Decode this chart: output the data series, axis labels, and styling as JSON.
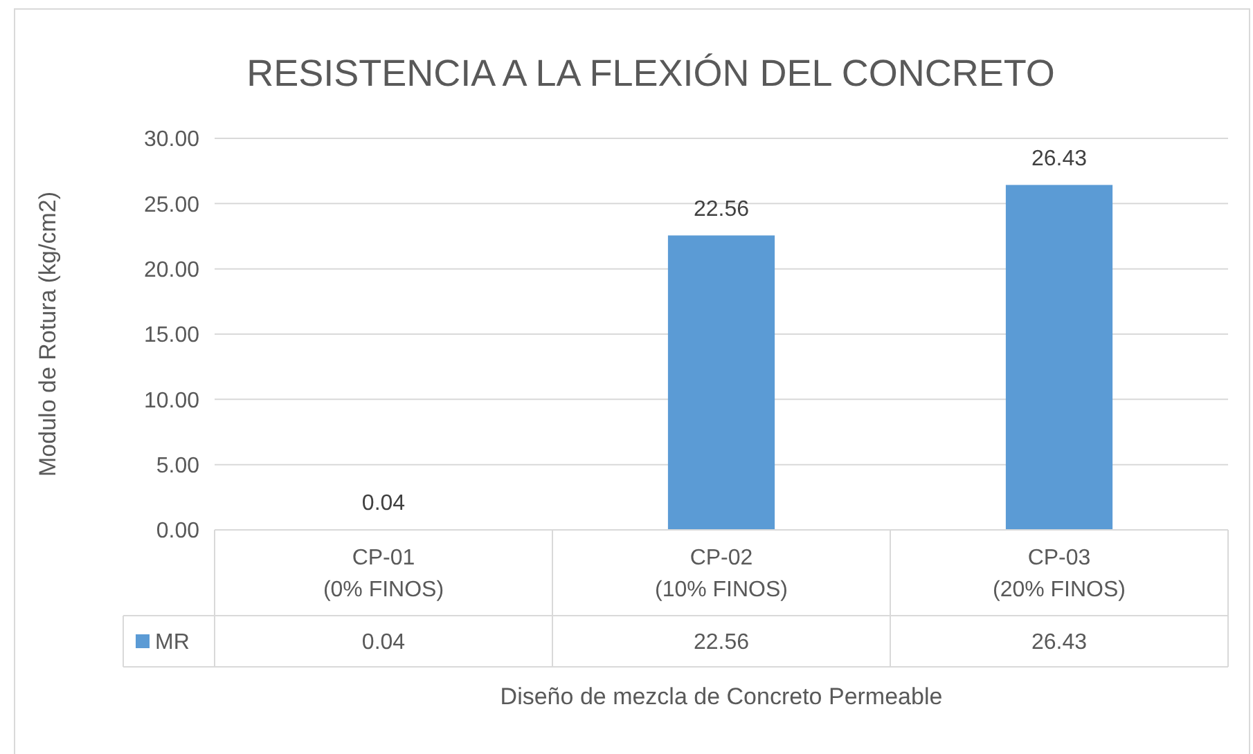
{
  "chart_data": {
    "type": "bar",
    "title": "RESISTENCIA A LA FLEXIÓN DEL CONCRETO",
    "xlabel": "Diseño de mezcla de Concreto Permeable",
    "ylabel": "Modulo de Rotura (kg/cm2)",
    "categories": [
      "CP-01\n(0% FINOS)",
      "CP-02\n(10% FINOS)",
      "CP-03\n(20% FINOS)"
    ],
    "series": [
      {
        "name": "MR",
        "color": "#5b9bd5",
        "values": [
          0.04,
          22.56,
          26.43
        ]
      }
    ],
    "ylim": [
      0,
      30
    ],
    "yticks": [
      {
        "value": 0,
        "label": "0.00"
      },
      {
        "value": 5,
        "label": "5.00"
      },
      {
        "value": 10,
        "label": "10.00"
      },
      {
        "value": 15,
        "label": "15.00"
      },
      {
        "value": 20,
        "label": "20.00"
      },
      {
        "value": 25,
        "label": "25.00"
      },
      {
        "value": 30,
        "label": "30.00"
      }
    ],
    "grid": "y",
    "legend": "bottom",
    "data_labels": true,
    "annotations": [
      "0.04",
      "22.56",
      "26.43"
    ]
  }
}
